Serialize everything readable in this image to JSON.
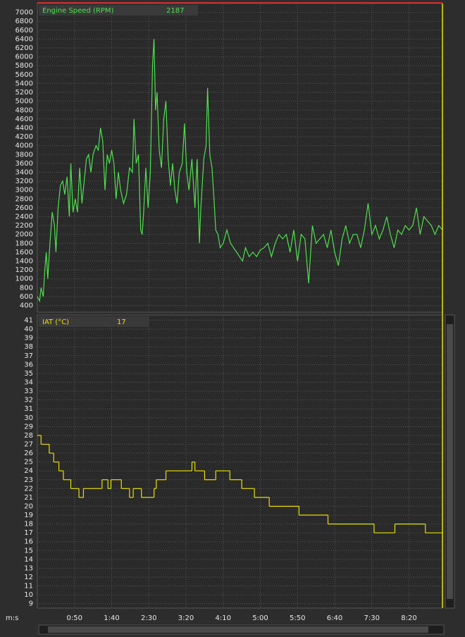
{
  "chart_data": [
    {
      "type": "line",
      "series": [
        {
          "name": "Engine Speed (RPM)",
          "readout": 2187,
          "color": "#4fe04f",
          "x": [
            0,
            3,
            5,
            8,
            10,
            12,
            14,
            17,
            20,
            23,
            25,
            28,
            31,
            34,
            37,
            40,
            43,
            45,
            48,
            51,
            54,
            57,
            60,
            63,
            66,
            69,
            72,
            75,
            79,
            82,
            85,
            88,
            91,
            94,
            97,
            100,
            103,
            106,
            109,
            112,
            116,
            120,
            124,
            128,
            130,
            133,
            136,
            139,
            141,
            143,
            146,
            149,
            152,
            155,
            157,
            159,
            161,
            164,
            167,
            170,
            173,
            176,
            179,
            182,
            185,
            188,
            191,
            195,
            198,
            201,
            204,
            208,
            212,
            215,
            218,
            220,
            224,
            227,
            229,
            232,
            235,
            238,
            240,
            243,
            246,
            250,
            255,
            260,
            264,
            268,
            272,
            276,
            280,
            285,
            290,
            295,
            300,
            305,
            310,
            315,
            320,
            325,
            330,
            335,
            340,
            345,
            350,
            355,
            360,
            365,
            370,
            375,
            380,
            385,
            390,
            395,
            400,
            405,
            410,
            415,
            420,
            425,
            430,
            435,
            440,
            445,
            450,
            455,
            460,
            465,
            470,
            475,
            480,
            485,
            490,
            495,
            500,
            505,
            510,
            515,
            520,
            525,
            530,
            535,
            540,
            545
          ],
          "values": [
            600,
            500,
            800,
            600,
            1200,
            1600,
            1000,
            1800,
            2500,
            2200,
            1600,
            2600,
            3100,
            3200,
            2900,
            3300,
            2400,
            3600,
            2500,
            2800,
            2500,
            3500,
            2700,
            3200,
            3700,
            3800,
            3400,
            3800,
            4000,
            3900,
            4400,
            4100,
            3000,
            3800,
            3600,
            3900,
            3600,
            2800,
            3400,
            3000,
            2700,
            2900,
            3500,
            3400,
            4600,
            3600,
            3800,
            2100,
            2000,
            2500,
            3500,
            2600,
            3400,
            5800,
            6400,
            4800,
            5200,
            3900,
            3500,
            4600,
            5000,
            3700,
            3100,
            3600,
            3000,
            2700,
            3400,
            3600,
            4500,
            3400,
            3000,
            3700,
            2600,
            3700,
            1800,
            2600,
            3700,
            4000,
            5300,
            3800,
            3500,
            2700,
            2100,
            2000,
            1700,
            1800,
            2100,
            1800,
            1700,
            1600,
            1500,
            1400,
            1700,
            1500,
            1600,
            1500,
            1650,
            1700,
            1800,
            1500,
            1800,
            2000,
            1900,
            2000,
            1600,
            2100,
            1400,
            2000,
            1900,
            900,
            2200,
            1800,
            1900,
            2000,
            1700,
            2100,
            1600,
            1300,
            1900,
            2200,
            1800,
            2000,
            2000,
            1700,
            2100,
            2700,
            2000,
            2200,
            1900,
            2100,
            2400,
            2000,
            1700,
            2100,
            2000,
            2200,
            2100,
            2200,
            2600,
            2000,
            2400,
            2300,
            2200,
            2000,
            2200,
            2100
          ]
        }
      ],
      "xlim": [
        0,
        545
      ],
      "ylim": [
        250,
        7200
      ],
      "yticks": [
        400,
        600,
        800,
        1000,
        1200,
        1400,
        1600,
        1800,
        2000,
        2200,
        2400,
        2600,
        2800,
        3000,
        3200,
        3400,
        3600,
        3800,
        4000,
        4200,
        4400,
        4600,
        4800,
        5000,
        5200,
        5400,
        5600,
        5800,
        6000,
        6200,
        6400,
        6600,
        6800,
        7000
      ],
      "grid": true
    },
    {
      "type": "step",
      "series": [
        {
          "name": "IAT (°C)",
          "readout": 17,
          "color": "#e8e000",
          "x": [
            0,
            5,
            16,
            22,
            29,
            35,
            45,
            56,
            62,
            87,
            95,
            99,
            113,
            124,
            129,
            140,
            157,
            160,
            173,
            208,
            212,
            225,
            240,
            259,
            275,
            292,
            312,
            352,
            391,
            453,
            481,
            522,
            545
          ],
          "values": [
            28,
            27,
            26,
            25,
            24,
            23,
            22,
            21,
            22,
            23,
            22,
            23,
            22,
            21,
            22,
            21,
            22,
            23,
            24,
            25,
            24,
            23,
            24,
            23,
            22,
            21,
            20,
            19,
            18,
            17,
            18,
            17,
            17
          ]
        }
      ],
      "xlim": [
        0,
        545
      ],
      "ylim": [
        8.5,
        41.6
      ],
      "yticks": [
        9,
        10,
        11,
        12,
        13,
        14,
        15,
        16,
        17,
        18,
        19,
        20,
        21,
        22,
        23,
        24,
        25,
        26,
        27,
        28,
        29,
        30,
        31,
        32,
        33,
        34,
        35,
        36,
        37,
        38,
        39,
        40,
        41
      ],
      "xlabel": "m:s",
      "xticks": [
        {
          "value": 50,
          "label": "0:50"
        },
        {
          "value": 100,
          "label": "1:40"
        },
        {
          "value": 150,
          "label": "2:30"
        },
        {
          "value": 200,
          "label": "3:20"
        },
        {
          "value": 250,
          "label": "4:10"
        },
        {
          "value": 300,
          "label": "5:00"
        },
        {
          "value": 350,
          "label": "5:50"
        },
        {
          "value": 400,
          "label": "6:40"
        },
        {
          "value": 450,
          "label": "7:30"
        },
        {
          "value": 500,
          "label": "8:20"
        }
      ],
      "grid": true
    }
  ]
}
